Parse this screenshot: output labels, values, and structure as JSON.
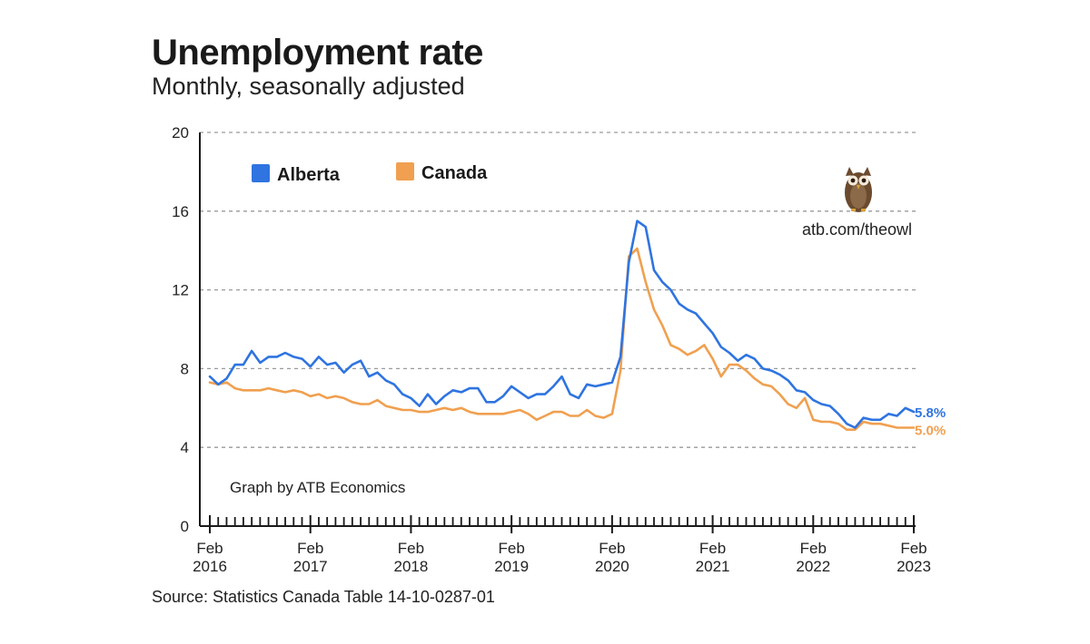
{
  "header": {
    "title": "Unemployment rate",
    "subtitle": "Monthly, seasonally adjusted"
  },
  "footer": {
    "source": "Source: Statistics Canada Table 14-10-0287-01"
  },
  "branding": {
    "url": "atb.com/theowl",
    "credit": "Graph by ATB Economics",
    "owl_icon": "owl-icon"
  },
  "colors": {
    "alberta": "#2f74e0",
    "canada": "#f0a050",
    "grid": "#9a9a9a",
    "axis": "#1a1a1a"
  },
  "chart_data": {
    "type": "line",
    "title": "Unemployment rate",
    "subtitle": "Monthly, seasonally adjusted",
    "xlabel": "",
    "ylabel": "",
    "ylim": [
      0,
      20
    ],
    "yticks": [
      0,
      4,
      8,
      12,
      16,
      20
    ],
    "grid": true,
    "legend_position": "top-left",
    "x_start": "Feb 2016",
    "x_end": "Feb 2023",
    "months": 85,
    "xticks": [
      {
        "month_index": 0,
        "line1": "Feb",
        "line2": "2016"
      },
      {
        "month_index": 12,
        "line1": "Feb",
        "line2": "2017"
      },
      {
        "month_index": 24,
        "line1": "Feb",
        "line2": "2018"
      },
      {
        "month_index": 36,
        "line1": "Feb",
        "line2": "2019"
      },
      {
        "month_index": 48,
        "line1": "Feb",
        "line2": "2020"
      },
      {
        "month_index": 60,
        "line1": "Feb",
        "line2": "2021"
      },
      {
        "month_index": 72,
        "line1": "Feb",
        "line2": "2022"
      },
      {
        "month_index": 84,
        "line1": "Feb",
        "line2": "2023"
      }
    ],
    "series": [
      {
        "name": "Alberta",
        "color": "#2f74e0",
        "end_label": "5.8%",
        "values": [
          7.6,
          7.2,
          7.5,
          8.2,
          8.2,
          8.9,
          8.3,
          8.6,
          8.6,
          8.8,
          8.6,
          8.5,
          8.1,
          8.6,
          8.2,
          8.3,
          7.8,
          8.2,
          8.4,
          7.6,
          7.8,
          7.4,
          7.2,
          6.7,
          6.5,
          6.1,
          6.7,
          6.2,
          6.6,
          6.9,
          6.8,
          7.0,
          7.0,
          6.3,
          6.3,
          6.6,
          7.1,
          6.8,
          6.5,
          6.7,
          6.7,
          7.1,
          7.6,
          6.7,
          6.5,
          7.2,
          7.1,
          7.2,
          7.3,
          8.6,
          13.4,
          15.5,
          15.2,
          13.0,
          12.4,
          12.0,
          11.3,
          11.0,
          10.8,
          10.3,
          9.8,
          9.1,
          8.8,
          8.4,
          8.7,
          8.5,
          8.0,
          7.9,
          7.7,
          7.4,
          6.9,
          6.8,
          6.4,
          6.2,
          6.1,
          5.7,
          5.2,
          5.0,
          5.5,
          5.4,
          5.4,
          5.7,
          5.6,
          6.0,
          5.8
        ]
      },
      {
        "name": "Canada",
        "color": "#f0a050",
        "end_label": "5.0%",
        "values": [
          7.3,
          7.2,
          7.3,
          7.0,
          6.9,
          6.9,
          6.9,
          7.0,
          6.9,
          6.8,
          6.9,
          6.8,
          6.6,
          6.7,
          6.5,
          6.6,
          6.5,
          6.3,
          6.2,
          6.2,
          6.4,
          6.1,
          6.0,
          5.9,
          5.9,
          5.8,
          5.8,
          5.9,
          6.0,
          5.9,
          6.0,
          5.8,
          5.7,
          5.7,
          5.7,
          5.7,
          5.8,
          5.9,
          5.7,
          5.4,
          5.6,
          5.8,
          5.8,
          5.6,
          5.6,
          5.9,
          5.6,
          5.5,
          5.7,
          7.9,
          13.7,
          14.1,
          12.4,
          11.0,
          10.2,
          9.2,
          9.0,
          8.7,
          8.9,
          9.2,
          8.5,
          7.6,
          8.2,
          8.2,
          7.9,
          7.5,
          7.2,
          7.1,
          6.7,
          6.2,
          6.0,
          6.5,
          5.4,
          5.3,
          5.3,
          5.2,
          4.9,
          4.9,
          5.3,
          5.2,
          5.2,
          5.1,
          5.0,
          5.0,
          5.0
        ]
      }
    ]
  }
}
